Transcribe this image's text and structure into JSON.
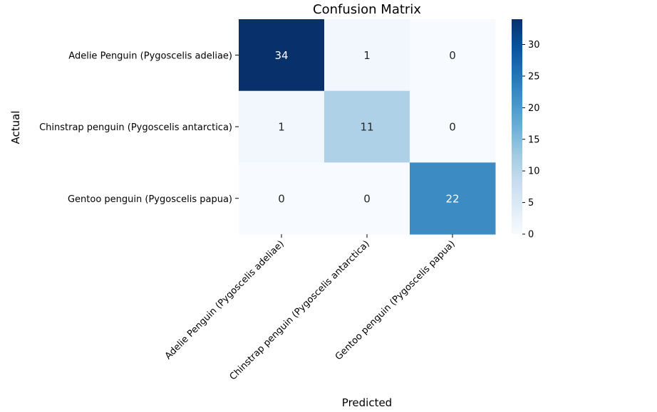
{
  "chart_data": {
    "type": "heatmap",
    "title": "Confusion Matrix",
    "xlabel": "Predicted",
    "ylabel": "Actual",
    "x_categories": [
      "Adelie Penguin (Pygoscelis adeliae)",
      "Chinstrap penguin (Pygoscelis antarctica)",
      "Gentoo penguin (Pygoscelis papua)"
    ],
    "y_categories": [
      "Adelie Penguin (Pygoscelis adeliae)",
      "Chinstrap penguin (Pygoscelis antarctica)",
      "Gentoo penguin (Pygoscelis papua)"
    ],
    "values": [
      [
        34,
        1,
        0
      ],
      [
        1,
        11,
        0
      ],
      [
        0,
        0,
        22
      ]
    ],
    "colormap": "Blues",
    "colorbar": {
      "vmin": 0,
      "vmax": 34,
      "ticks": [
        0,
        5,
        10,
        15,
        20,
        25,
        30
      ]
    },
    "colors": {
      "low": "#f7fbff",
      "high": "#08306b",
      "annotation_dark": "#262626",
      "annotation_light": "#ffffff"
    }
  }
}
